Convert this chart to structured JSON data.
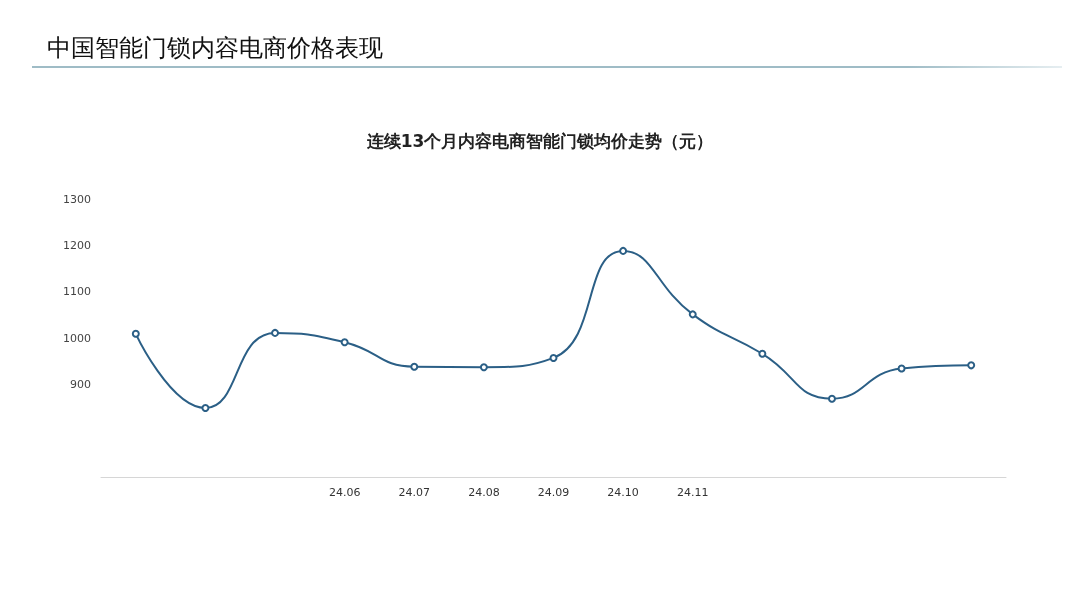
{
  "chart_data": {
    "type": "line",
    "title": "中国智能门锁内容电商价格表现",
    "subtitle": "连续13个月内容电商智能门锁均价走势（元）",
    "categories": [
      null,
      null,
      null,
      "24.06",
      "24.07",
      "24.08",
      "24.09",
      "24.10",
      "24.11",
      null,
      null,
      null,
      null
    ],
    "series": [
      {
        "color": "#2b5f86",
        "values": [
          1009,
          849,
          1011,
          991,
          938,
          937,
          957,
          1188,
          1051,
          966,
          869,
          934,
          941
        ]
      }
    ],
    "ylim": [
      700,
      1300
    ],
    "yticks": [
      900,
      1000,
      1100,
      1200,
      1300
    ],
    "grid": false,
    "marker": "circle",
    "line_style": "solid"
  }
}
